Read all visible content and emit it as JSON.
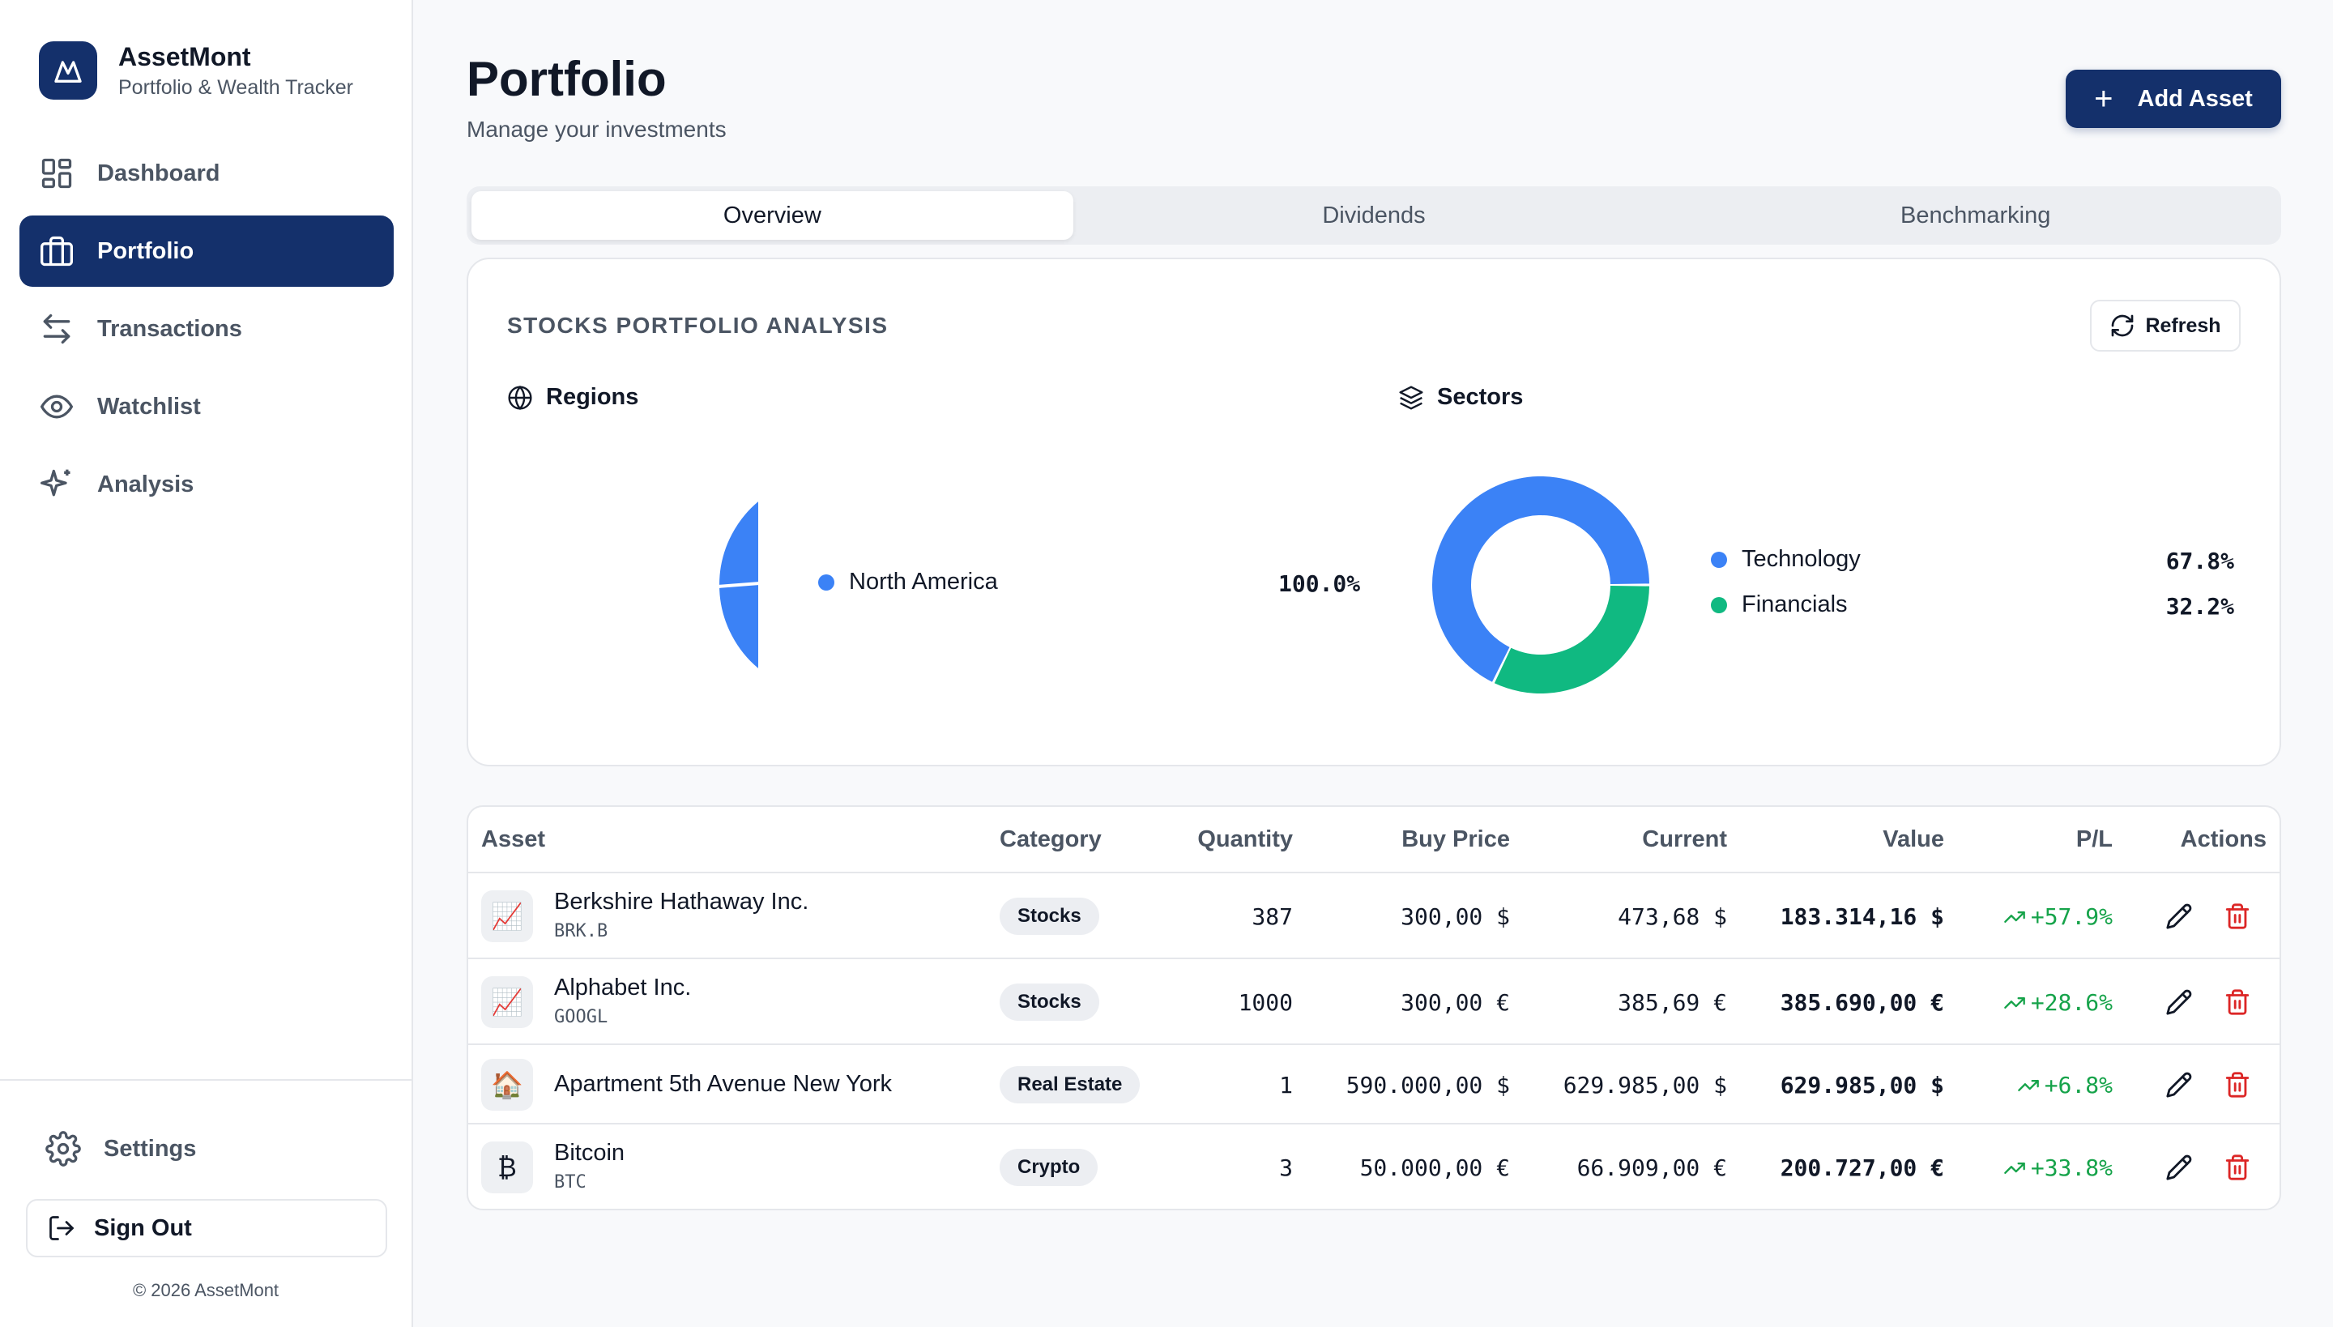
{
  "brand": {
    "name": "AssetMont",
    "subtitle": "Portfolio & Wealth Tracker"
  },
  "nav": {
    "dashboard": "Dashboard",
    "portfolio": "Portfolio",
    "transactions": "Transactions",
    "watchlist": "Watchlist",
    "analysis": "Analysis"
  },
  "sidebar_bottom": {
    "settings": "Settings",
    "sign_out": "Sign Out",
    "copyright": "© 2026 AssetMont"
  },
  "header": {
    "title": "Portfolio",
    "subtitle": "Manage your investments",
    "add_button": "Add Asset"
  },
  "tabs": {
    "overview": "Overview",
    "dividends": "Dividends",
    "benchmarking": "Benchmarking",
    "active": "Overview"
  },
  "analysis": {
    "title": "STOCKS PORTFOLIO ANALYSIS",
    "refresh": "Refresh",
    "regions_title": "Regions",
    "sectors_title": "Sectors",
    "regions": [
      {
        "name": "North America",
        "pct": "100.0%",
        "value": 100.0,
        "color": "#3b82f6"
      }
    ],
    "sectors": [
      {
        "name": "Technology",
        "pct": "67.8%",
        "value": 67.8,
        "color": "#3b82f6"
      },
      {
        "name": "Financials",
        "pct": "32.2%",
        "value": 32.2,
        "color": "#10b981"
      }
    ]
  },
  "table": {
    "headers": {
      "asset": "Asset",
      "category": "Category",
      "quantity": "Quantity",
      "buy_price": "Buy Price",
      "current": "Current",
      "value": "Value",
      "pl": "P/L",
      "actions": "Actions"
    },
    "rows": [
      {
        "icon": "chart-up-icon",
        "glyph": "📈",
        "name": "Berkshire Hathaway Inc.",
        "ticker": "BRK.B",
        "category": "Stocks",
        "quantity": "387",
        "buy_price": "300,00 $",
        "current": "473,68 $",
        "value": "183.314,16 $",
        "pl": "+57.9%"
      },
      {
        "icon": "chart-up-icon",
        "glyph": "📈",
        "name": "Alphabet Inc.",
        "ticker": "GOOGL",
        "category": "Stocks",
        "quantity": "1000",
        "buy_price": "300,00 €",
        "current": "385,69 €",
        "value": "385.690,00 €",
        "pl": "+28.6%"
      },
      {
        "icon": "house-icon",
        "glyph": "🏠",
        "name": "Apartment 5th Avenue New York",
        "ticker": "",
        "category": "Real Estate",
        "quantity": "1",
        "buy_price": "590.000,00 $",
        "current": "629.985,00 $",
        "value": "629.985,00 $",
        "pl": "+6.8%"
      },
      {
        "icon": "bitcoin-icon",
        "glyph": "₿",
        "name": "Bitcoin",
        "ticker": "BTC",
        "category": "Crypto",
        "quantity": "3",
        "buy_price": "50.000,00 €",
        "current": "66.909,00 €",
        "value": "200.727,00 €",
        "pl": "+33.8%"
      }
    ]
  },
  "colors": {
    "brand": "#14306b",
    "positive": "#16a34a",
    "danger": "#dc2626",
    "blue": "#3b82f6",
    "green": "#10b981"
  }
}
